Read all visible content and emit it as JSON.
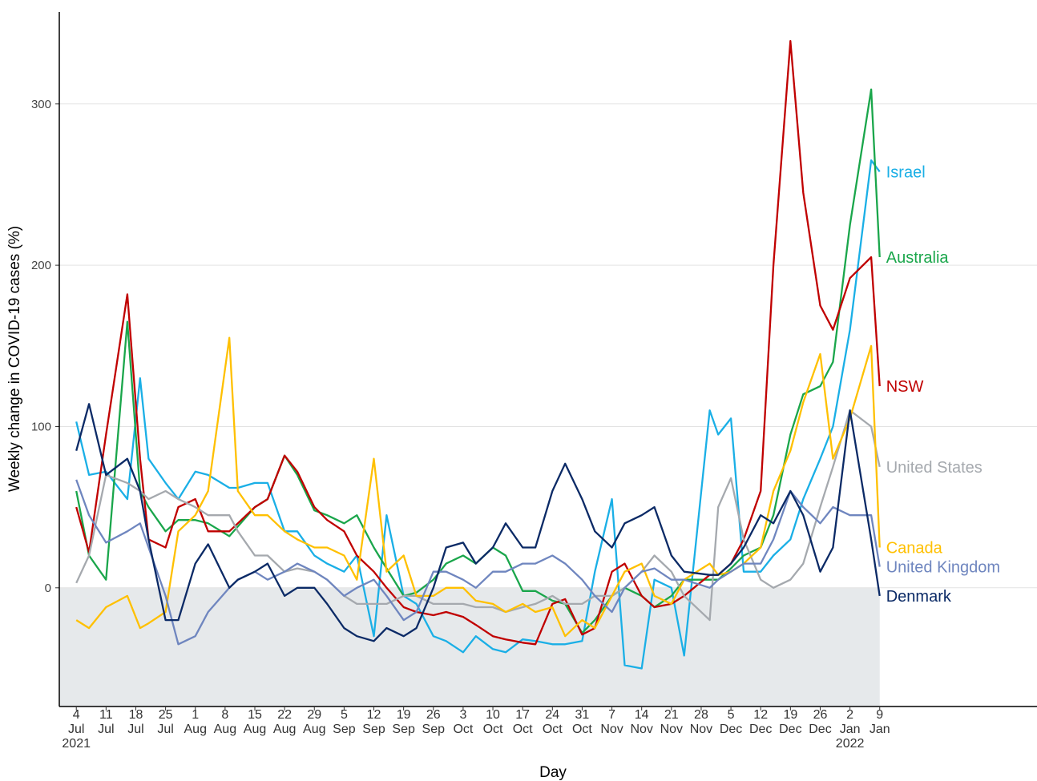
{
  "chart_data": {
    "type": "line",
    "y_label": "Weekly change in COVID-19 cases (%)",
    "x_label": "Day",
    "x": [
      "2021-07-04",
      "2021-07-07",
      "2021-07-11",
      "2021-07-16",
      "2021-07-19",
      "2021-07-21",
      "2021-07-25",
      "2021-07-28",
      "2021-08-01",
      "2021-08-04",
      "2021-08-09",
      "2021-08-11",
      "2021-08-15",
      "2021-08-18",
      "2021-08-22",
      "2021-08-25",
      "2021-08-29",
      "2021-09-01",
      "2021-09-05",
      "2021-09-08",
      "2021-09-12",
      "2021-09-15",
      "2021-09-19",
      "2021-09-22",
      "2021-09-26",
      "2021-09-29",
      "2021-10-03",
      "2021-10-06",
      "2021-10-10",
      "2021-10-13",
      "2021-10-17",
      "2021-10-20",
      "2021-10-24",
      "2021-10-27",
      "2021-10-31",
      "2021-11-03",
      "2021-11-07",
      "2021-11-10",
      "2021-11-14",
      "2021-11-17",
      "2021-11-21",
      "2021-11-24",
      "2021-11-30",
      "2021-12-02",
      "2021-12-05",
      "2021-12-08",
      "2021-12-12",
      "2021-12-15",
      "2021-12-19",
      "2021-12-22",
      "2021-12-26",
      "2021-12-29",
      "2022-01-02",
      "2022-01-07",
      "2022-01-09"
    ],
    "series": [
      {
        "name": "Israel",
        "color": "#1aafe6",
        "values": [
          103,
          70,
          72,
          55,
          130,
          80,
          65,
          55,
          72,
          70,
          62,
          62,
          65,
          65,
          35,
          35,
          20,
          15,
          10,
          20,
          -30,
          45,
          -5,
          -10,
          -30,
          -33,
          -40,
          -30,
          -38,
          -40,
          -32,
          -33,
          -35,
          -35,
          -33,
          10,
          55,
          -48,
          -50,
          5,
          0,
          -42,
          110,
          95,
          105,
          10,
          10,
          20,
          30,
          55,
          80,
          100,
          160,
          265,
          258
        ]
      },
      {
        "name": "Australia",
        "color": "#1aa64b",
        "values": [
          60,
          20,
          5,
          165,
          60,
          50,
          35,
          42,
          42,
          40,
          32,
          38,
          50,
          55,
          82,
          70,
          48,
          45,
          40,
          45,
          25,
          12,
          -5,
          -3,
          5,
          15,
          20,
          15,
          25,
          20,
          -2,
          -2,
          -8,
          -10,
          -28,
          -20,
          -5,
          0,
          -5,
          -12,
          -5,
          5,
          5,
          5,
          12,
          20,
          25,
          45,
          95,
          120,
          125,
          140,
          225,
          309,
          205
        ]
      },
      {
        "name": "NSW",
        "color": "#c00000",
        "values": [
          50,
          22,
          95,
          182,
          80,
          30,
          25,
          50,
          55,
          35,
          35,
          40,
          50,
          55,
          82,
          72,
          50,
          42,
          35,
          20,
          10,
          0,
          -12,
          -15,
          -17,
          -15,
          -18,
          -23,
          -30,
          -32,
          -34,
          -35,
          -10,
          -7,
          -29,
          -25,
          10,
          15,
          -5,
          -12,
          -10,
          -5,
          8,
          8,
          15,
          30,
          60,
          200,
          339,
          245,
          175,
          160,
          192,
          205,
          125
        ]
      },
      {
        "name": "United States",
        "color": "#a5a9ae",
        "values": [
          3,
          20,
          70,
          65,
          60,
          55,
          60,
          55,
          50,
          45,
          45,
          35,
          20,
          20,
          10,
          12,
          10,
          5,
          -5,
          -10,
          -10,
          -10,
          -5,
          -5,
          -10,
          -10,
          -10,
          -12,
          -12,
          -15,
          -12,
          -10,
          -5,
          -10,
          -10,
          -5,
          -5,
          0,
          10,
          20,
          10,
          -5,
          -20,
          50,
          68,
          30,
          5,
          0,
          5,
          15,
          50,
          75,
          110,
          100,
          75
        ]
      },
      {
        "name": "Canada",
        "color": "#ffc000",
        "values": [
          -20,
          -25,
          -12,
          -5,
          -25,
          -22,
          -15,
          35,
          45,
          60,
          155,
          60,
          45,
          45,
          35,
          30,
          25,
          25,
          20,
          5,
          80,
          10,
          20,
          -5,
          -5,
          0,
          0,
          -8,
          -10,
          -15,
          -10,
          -15,
          -12,
          -30,
          -20,
          -25,
          -5,
          10,
          15,
          -5,
          -10,
          5,
          15,
          8,
          10,
          15,
          25,
          60,
          85,
          115,
          145,
          80,
          105,
          150,
          25
        ]
      },
      {
        "name": "United Kingdom",
        "color": "#6f86bf",
        "values": [
          67,
          45,
          28,
          35,
          40,
          25,
          -5,
          -35,
          -30,
          -15,
          0,
          5,
          10,
          5,
          10,
          15,
          10,
          5,
          -5,
          0,
          5,
          -5,
          -20,
          -15,
          10,
          10,
          5,
          0,
          10,
          10,
          15,
          15,
          20,
          15,
          5,
          -5,
          -15,
          0,
          10,
          12,
          5,
          5,
          0,
          5,
          10,
          15,
          15,
          30,
          60,
          50,
          40,
          50,
          45,
          45,
          13
        ]
      },
      {
        "name": "Denmark",
        "color": "#0b2a66",
        "values": [
          85,
          114,
          70,
          80,
          60,
          30,
          -20,
          -20,
          15,
          27,
          0,
          5,
          10,
          15,
          -5,
          0,
          0,
          -10,
          -25,
          -30,
          -33,
          -25,
          -30,
          -25,
          0,
          25,
          28,
          15,
          25,
          40,
          25,
          25,
          60,
          77,
          55,
          35,
          25,
          40,
          45,
          50,
          20,
          10,
          8,
          8,
          15,
          25,
          45,
          40,
          60,
          45,
          10,
          25,
          110,
          30,
          -5
        ]
      }
    ],
    "xlim": [
      "2021-06-30",
      "2022-02-15"
    ],
    "xticks": [
      {
        "value": "2021-07-04",
        "label": "4 Jul 2021"
      },
      {
        "value": "2021-07-11",
        "label": "11 Jul"
      },
      {
        "value": "2021-07-18",
        "label": "18 Jul"
      },
      {
        "value": "2021-07-25",
        "label": "25 Jul"
      },
      {
        "value": "2021-08-01",
        "label": "1 Aug"
      },
      {
        "value": "2021-08-08",
        "label": "8 Aug"
      },
      {
        "value": "2021-08-15",
        "label": "15 Aug"
      },
      {
        "value": "2021-08-22",
        "label": "22 Aug"
      },
      {
        "value": "2021-08-29",
        "label": "29 Aug"
      },
      {
        "value": "2021-09-05",
        "label": "5 Sep"
      },
      {
        "value": "2021-09-12",
        "label": "12 Sep"
      },
      {
        "value": "2021-09-19",
        "label": "19 Sep"
      },
      {
        "value": "2021-09-26",
        "label": "26 Sep"
      },
      {
        "value": "2021-10-03",
        "label": "3 Oct"
      },
      {
        "value": "2021-10-10",
        "label": "10 Oct"
      },
      {
        "value": "2021-10-17",
        "label": "17 Oct"
      },
      {
        "value": "2021-10-24",
        "label": "24 Oct"
      },
      {
        "value": "2021-10-31",
        "label": "31 Oct"
      },
      {
        "value": "2021-11-07",
        "label": "7 Nov"
      },
      {
        "value": "2021-11-14",
        "label": "14 Nov"
      },
      {
        "value": "2021-11-21",
        "label": "21 Nov"
      },
      {
        "value": "2021-11-28",
        "label": "28 Nov"
      },
      {
        "value": "2021-12-05",
        "label": "5 Dec"
      },
      {
        "value": "2021-12-12",
        "label": "12 Dec"
      },
      {
        "value": "2021-12-19",
        "label": "19 Dec"
      },
      {
        "value": "2021-12-26",
        "label": "26 Dec"
      },
      {
        "value": "2022-01-02",
        "label": "2 Jan 2022"
      },
      {
        "value": "2022-01-09",
        "label": "9 Jan"
      }
    ],
    "ylim": [
      -73.6,
      357
    ],
    "yticks": [
      0,
      100,
      200,
      300
    ],
    "grid": true,
    "shade_below_zero": "#e6e9eb"
  }
}
